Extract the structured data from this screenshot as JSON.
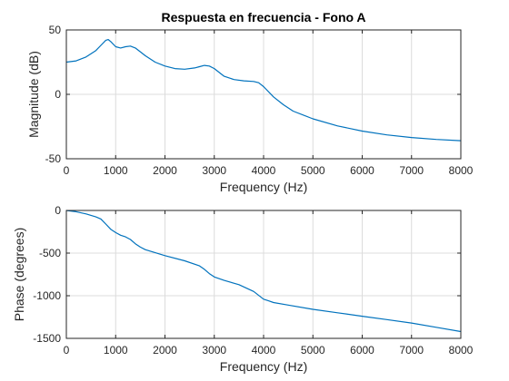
{
  "chart_data": [
    {
      "type": "line",
      "title": "Respuesta en frecuencia - Fono A",
      "xlabel": "Frequency (Hz)",
      "ylabel": "Magnitude (dB)",
      "xlim": [
        0,
        8000
      ],
      "ylim": [
        -50,
        50
      ],
      "x_ticks": [
        0,
        1000,
        2000,
        3000,
        4000,
        5000,
        6000,
        7000,
        8000
      ],
      "y_ticks": [
        -50,
        0,
        50
      ],
      "grid": true,
      "color": "#0072bd",
      "series": [
        {
          "x": [
            0,
            200,
            400,
            600,
            700,
            800,
            850,
            900,
            1000,
            1100,
            1200,
            1300,
            1400,
            1500,
            1600,
            1800,
            2000,
            2200,
            2400,
            2600,
            2700,
            2800,
            2900,
            3000,
            3100,
            3200,
            3400,
            3600,
            3800,
            3900,
            4000,
            4200,
            4400,
            4600,
            5000,
            5500,
            6000,
            6500,
            7000,
            7500,
            8000
          ],
          "y": [
            25,
            26,
            29,
            34,
            38,
            42,
            42.5,
            41,
            37,
            36,
            37,
            37.5,
            36,
            33,
            30,
            25,
            22,
            20,
            19.5,
            20.5,
            21.5,
            22.5,
            22,
            20,
            17,
            14,
            11.5,
            10.5,
            10,
            9,
            6,
            -2,
            -8,
            -13,
            -19,
            -24.5,
            -28.5,
            -31.5,
            -33.5,
            -35,
            -36
          ]
        }
      ]
    },
    {
      "type": "line",
      "title": "",
      "xlabel": "Frequency (Hz)",
      "ylabel": "Phase (degrees)",
      "xlim": [
        0,
        8000
      ],
      "ylim": [
        -1500,
        0
      ],
      "x_ticks": [
        0,
        1000,
        2000,
        3000,
        4000,
        5000,
        6000,
        7000,
        8000
      ],
      "y_ticks": [
        -1500,
        -1000,
        -500,
        0
      ],
      "grid": true,
      "color": "#0072bd",
      "series": [
        {
          "x": [
            0,
            200,
            400,
            600,
            700,
            800,
            900,
            1000,
            1100,
            1200,
            1300,
            1400,
            1500,
            1600,
            2000,
            2400,
            2700,
            2800,
            2900,
            3000,
            3200,
            3500,
            3800,
            4000,
            4100,
            4200,
            4500,
            5000,
            5500,
            6000,
            6500,
            7000,
            7500,
            8000
          ],
          "y": [
            0,
            -15,
            -40,
            -75,
            -100,
            -160,
            -220,
            -260,
            -290,
            -310,
            -340,
            -390,
            -430,
            -460,
            -530,
            -590,
            -650,
            -690,
            -740,
            -780,
            -820,
            -870,
            -950,
            -1040,
            -1060,
            -1080,
            -1110,
            -1160,
            -1200,
            -1240,
            -1280,
            -1320,
            -1370,
            -1420
          ]
        }
      ]
    }
  ]
}
